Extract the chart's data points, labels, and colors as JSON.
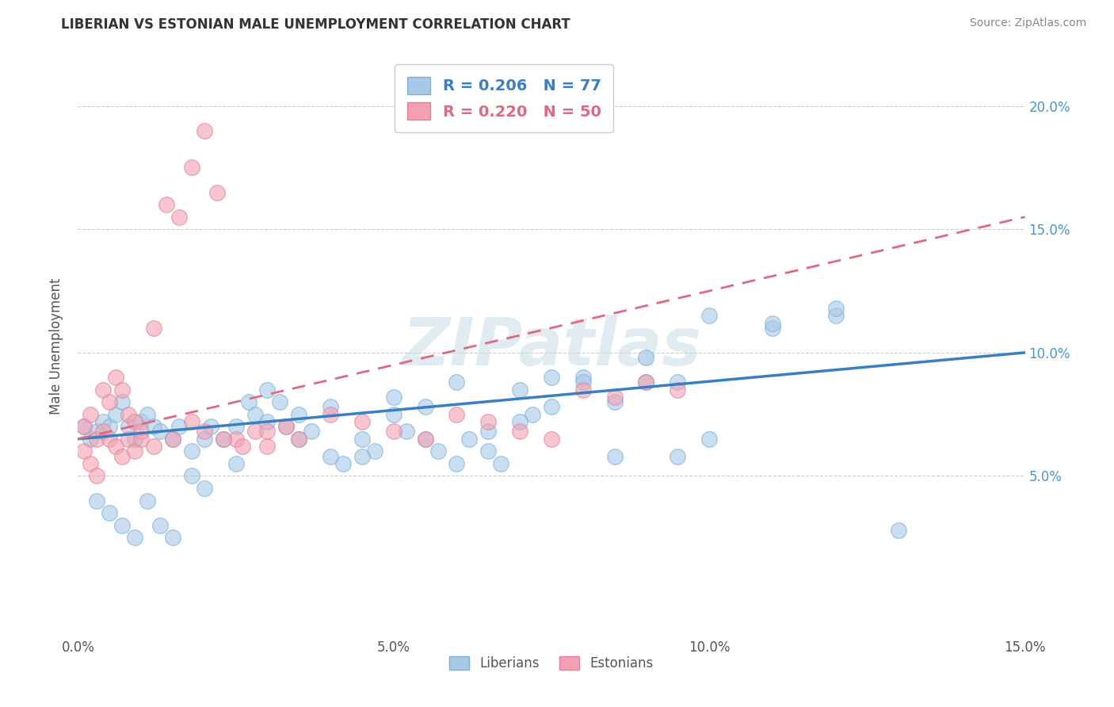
{
  "title": "LIBERIAN VS ESTONIAN MALE UNEMPLOYMENT CORRELATION CHART",
  "source_text": "Source: ZipAtlas.com",
  "ylabel": "Male Unemployment",
  "xlim": [
    0.0,
    0.15
  ],
  "ylim": [
    -0.015,
    0.22
  ],
  "yticks": [
    0.05,
    0.1,
    0.15,
    0.2
  ],
  "ytick_labels": [
    "5.0%",
    "10.0%",
    "15.0%",
    "20.0%"
  ],
  "xticks": [
    0.0,
    0.05,
    0.1,
    0.15
  ],
  "xtick_labels": [
    "0.0%",
    "5.0%",
    "10.0%",
    "15.0%"
  ],
  "liberian_color": "#a8c8e8",
  "estonian_color": "#f4a0b0",
  "liberian_edge": "#7ab0d8",
  "estonian_edge": "#e080a0",
  "liberian_R": 0.206,
  "liberian_N": 77,
  "estonian_R": 0.22,
  "estonian_N": 50,
  "liberian_line_color": "#3a7fc1",
  "estonian_line_color": "#e06880",
  "liberian_line_style": "solid",
  "estonian_line_style": "dashed",
  "watermark": "ZIPatlas",
  "liberian_line_x0": 0.0,
  "liberian_line_y0": 0.065,
  "liberian_line_x1": 0.15,
  "liberian_line_y1": 0.1,
  "estonian_line_x0": 0.0,
  "estonian_line_y0": 0.065,
  "estonian_line_x1": 0.15,
  "estonian_line_y1": 0.155,
  "liberian_scatter_x": [
    0.001,
    0.002,
    0.003,
    0.004,
    0.005,
    0.006,
    0.007,
    0.008,
    0.009,
    0.01,
    0.011,
    0.012,
    0.013,
    0.015,
    0.016,
    0.018,
    0.02,
    0.021,
    0.023,
    0.025,
    0.027,
    0.028,
    0.03,
    0.032,
    0.033,
    0.035,
    0.037,
    0.04,
    0.042,
    0.045,
    0.047,
    0.05,
    0.052,
    0.055,
    0.057,
    0.06,
    0.062,
    0.065,
    0.067,
    0.07,
    0.072,
    0.075,
    0.08,
    0.085,
    0.09,
    0.095,
    0.1,
    0.11,
    0.12,
    0.003,
    0.005,
    0.007,
    0.009,
    0.011,
    0.013,
    0.015,
    0.018,
    0.02,
    0.025,
    0.03,
    0.035,
    0.04,
    0.045,
    0.05,
    0.055,
    0.06,
    0.065,
    0.07,
    0.075,
    0.08,
    0.085,
    0.09,
    0.095,
    0.1,
    0.11,
    0.12,
    0.13
  ],
  "liberian_scatter_y": [
    0.07,
    0.065,
    0.068,
    0.072,
    0.07,
    0.075,
    0.08,
    0.07,
    0.065,
    0.072,
    0.075,
    0.07,
    0.068,
    0.065,
    0.07,
    0.06,
    0.065,
    0.07,
    0.065,
    0.07,
    0.08,
    0.075,
    0.085,
    0.08,
    0.07,
    0.075,
    0.068,
    0.058,
    0.055,
    0.065,
    0.06,
    0.075,
    0.068,
    0.065,
    0.06,
    0.055,
    0.065,
    0.06,
    0.055,
    0.085,
    0.075,
    0.09,
    0.09,
    0.08,
    0.088,
    0.058,
    0.065,
    0.11,
    0.115,
    0.04,
    0.035,
    0.03,
    0.025,
    0.04,
    0.03,
    0.025,
    0.05,
    0.045,
    0.055,
    0.072,
    0.065,
    0.078,
    0.058,
    0.082,
    0.078,
    0.088,
    0.068,
    0.072,
    0.078,
    0.088,
    0.058,
    0.098,
    0.088,
    0.115,
    0.112,
    0.118,
    0.028
  ],
  "estonian_scatter_x": [
    0.001,
    0.002,
    0.003,
    0.004,
    0.005,
    0.006,
    0.007,
    0.008,
    0.009,
    0.01,
    0.012,
    0.014,
    0.016,
    0.018,
    0.02,
    0.022,
    0.025,
    0.028,
    0.03,
    0.033,
    0.001,
    0.002,
    0.003,
    0.004,
    0.005,
    0.006,
    0.007,
    0.008,
    0.009,
    0.01,
    0.012,
    0.015,
    0.018,
    0.02,
    0.023,
    0.026,
    0.03,
    0.035,
    0.04,
    0.045,
    0.05,
    0.055,
    0.06,
    0.065,
    0.07,
    0.075,
    0.08,
    0.085,
    0.09,
    0.095
  ],
  "estonian_scatter_y": [
    0.07,
    0.075,
    0.065,
    0.085,
    0.08,
    0.09,
    0.085,
    0.075,
    0.072,
    0.068,
    0.11,
    0.16,
    0.155,
    0.175,
    0.19,
    0.165,
    0.065,
    0.068,
    0.062,
    0.07,
    0.06,
    0.055,
    0.05,
    0.068,
    0.065,
    0.062,
    0.058,
    0.065,
    0.06,
    0.065,
    0.062,
    0.065,
    0.072,
    0.068,
    0.065,
    0.062,
    0.068,
    0.065,
    0.075,
    0.072,
    0.068,
    0.065,
    0.075,
    0.072,
    0.068,
    0.065,
    0.085,
    0.082,
    0.088,
    0.085
  ]
}
